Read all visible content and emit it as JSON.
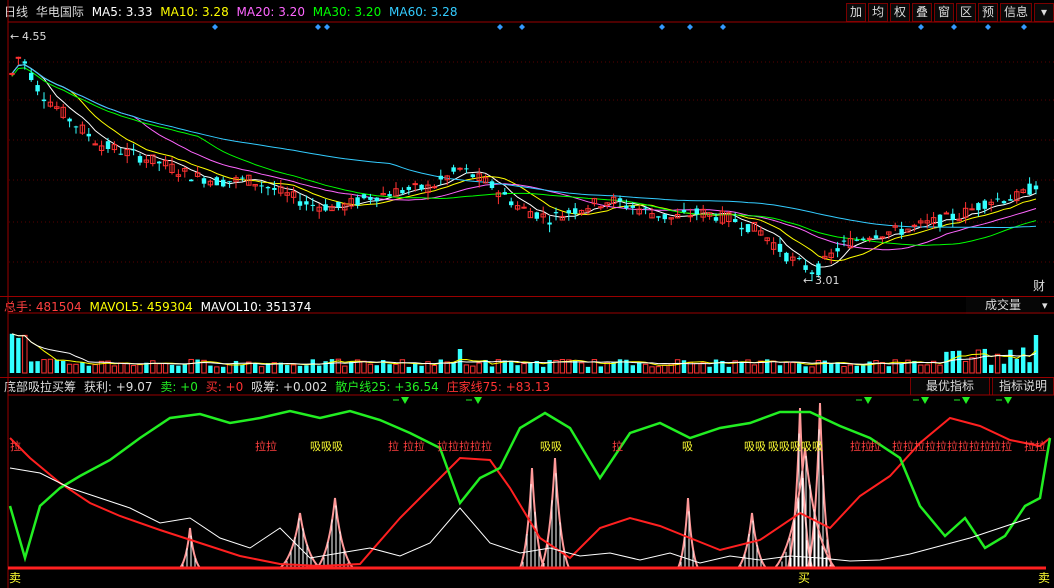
{
  "main": {
    "period": "日线",
    "stock_name": "华电国际",
    "ma": [
      {
        "label": "MA5: 3.33",
        "color": "#ffffff"
      },
      {
        "label": "MA10: 3.28",
        "color": "#ffff00"
      },
      {
        "label": "MA20: 3.20",
        "color": "#ff66ff"
      },
      {
        "label": "MA30: 3.20",
        "color": "#00ff00"
      },
      {
        "label": "MA60: 3.28",
        "color": "#33ccff"
      }
    ],
    "high_label": "4.55",
    "low_label": "3.01",
    "corner_label": "财",
    "toolbar": [
      "加",
      "均",
      "权",
      "叠",
      "窗",
      "区",
      "预",
      "信息",
      "▾"
    ]
  },
  "volume": {
    "title": "总手: ",
    "total": "481504",
    "mavol5": "MAVOL5: 459304",
    "mavol10": "MAVOL10: 351374",
    "selector": "成交量",
    "selector_arrow": "▾"
  },
  "indicator": {
    "name": "底部吸拉买筹",
    "profit": "获利: +9.07",
    "sell": "卖: +0",
    "buy": "买: +0",
    "absorb": "吸筹: +0.002",
    "retail": "散户线25: +36.54",
    "dealer": "庄家线75: +83.13",
    "btn_best": "最优指标",
    "btn_explain": "指标说明",
    "tags": [
      "拉",
      "拉拉",
      "吸吸吸",
      "拉",
      "拉拉",
      "拉拉拉拉拉",
      "吸吸",
      "拉",
      "吸",
      "吸吸",
      "吸吸吸吸吸",
      "拉拉",
      "拉",
      "拉拉拉拉拉拉拉拉拉",
      "拉拉",
      "拉拉"
    ],
    "bottom_sell": "卖",
    "bottom_buy": "买",
    "bottom_sell2": "卖"
  },
  "colors": {
    "up": "#ff3232",
    "down": "#33ffff",
    "frame": "#9a0000",
    "green": "#22ee22",
    "red": "#ff2020",
    "pink": "#ff9999",
    "yellow": "#ffff33"
  }
}
